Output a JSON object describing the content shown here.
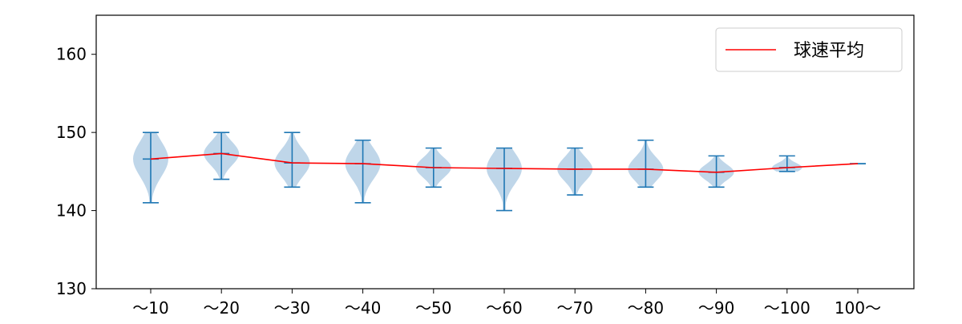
{
  "chart_data": {
    "type": "violin",
    "categories": [
      "～10",
      "～20",
      "～30",
      "～40",
      "～50",
      "～60",
      "～70",
      "～80",
      "～90",
      "～100",
      "100～"
    ],
    "ylim": [
      130,
      165
    ],
    "yticks": [
      130,
      140,
      150,
      160
    ],
    "grid": false,
    "legend_position": "top-right",
    "violins": [
      {
        "min": 141,
        "max": 150
      },
      {
        "min": 144,
        "max": 150
      },
      {
        "min": 143,
        "max": 150
      },
      {
        "min": 141,
        "max": 149
      },
      {
        "min": 143,
        "max": 148
      },
      {
        "min": 140,
        "max": 148
      },
      {
        "min": 142,
        "max": 148
      },
      {
        "min": 143,
        "max": 149
      },
      {
        "min": 143,
        "max": 147
      },
      {
        "min": 145,
        "max": 147
      },
      {
        "min": 146,
        "max": 146
      }
    ],
    "series": [
      {
        "name": "球速平均",
        "color": "#ff0000",
        "values": [
          146.6,
          147.3,
          146.1,
          146.0,
          145.5,
          145.4,
          145.3,
          145.3,
          144.9,
          145.5,
          146.0
        ]
      }
    ],
    "colors": {
      "violin_fill": "#a9c8e1",
      "violin_lines": "#1f77b4",
      "mean_line": "#ff0000"
    }
  }
}
